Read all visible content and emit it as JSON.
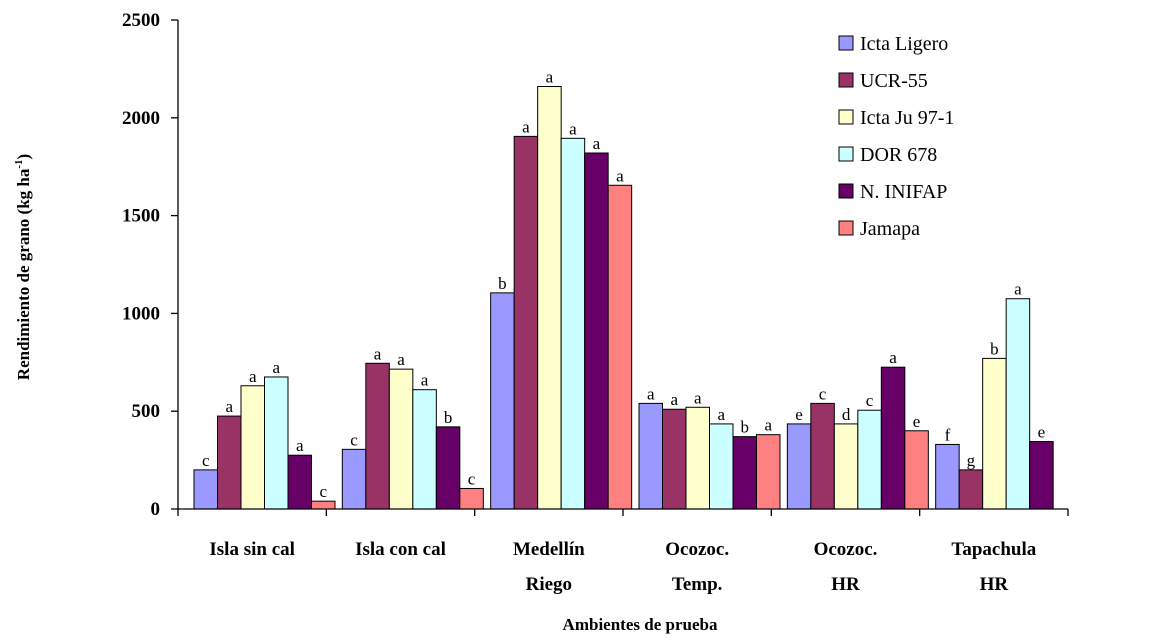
{
  "chart_data": {
    "type": "bar",
    "title": "",
    "ylabel": "Rendimiento de grano (kg ha",
    "ylabel_superscript": "-1",
    "ylabel_suffix": ")",
    "xlabel": "Ambientes de prueba",
    "ylim": [
      0,
      2500
    ],
    "yticks": [
      "0",
      "500",
      "1000",
      "1500",
      "2000",
      "2500"
    ],
    "ytick_values": [
      0,
      500,
      1000,
      1500,
      2000,
      2500
    ],
    "grid": false,
    "legend_position": "top-right",
    "categories": [
      [
        "Isla sin cal"
      ],
      [
        "Isla con cal"
      ],
      [
        "Medellín",
        "Riego"
      ],
      [
        "Ocozoc.",
        "Temp."
      ],
      [
        "Ocozoc.",
        "HR"
      ],
      [
        "Tapachula",
        "HR"
      ]
    ],
    "series": [
      {
        "name": "Icta Ligero",
        "color": "#9999ff",
        "values": [
          200,
          305,
          1105,
          540,
          435,
          330
        ],
        "letters": [
          "c",
          "c",
          "b",
          "a",
          "e",
          "f"
        ]
      },
      {
        "name": "UCR-55",
        "color": "#993366",
        "values": [
          475,
          745,
          1905,
          510,
          540,
          200
        ],
        "letters": [
          "a",
          "a",
          "a",
          "a",
          "c",
          "g"
        ]
      },
      {
        "name": "Icta Ju 97-1",
        "color": "#ffffcc",
        "values": [
          630,
          715,
          2160,
          520,
          435,
          770
        ],
        "letters": [
          "a",
          "a",
          "a",
          "a",
          "d",
          "b"
        ]
      },
      {
        "name": "DOR 678",
        "color": "#ccffff",
        "values": [
          675,
          610,
          1895,
          435,
          505,
          1075
        ],
        "letters": [
          "a",
          "a",
          "a",
          "a",
          "c",
          "a"
        ]
      },
      {
        "name": "N. INIFAP",
        "color": "#660066",
        "values": [
          275,
          420,
          1820,
          370,
          725,
          345
        ],
        "letters": [
          "a",
          "b",
          "a",
          "b",
          "a",
          "e"
        ]
      },
      {
        "name": "Jamapa",
        "color": "#ff8080",
        "values": [
          40,
          105,
          1655,
          380,
          400,
          null
        ],
        "letters": [
          "c",
          "c",
          "a",
          "a",
          "e",
          null
        ]
      }
    ]
  }
}
